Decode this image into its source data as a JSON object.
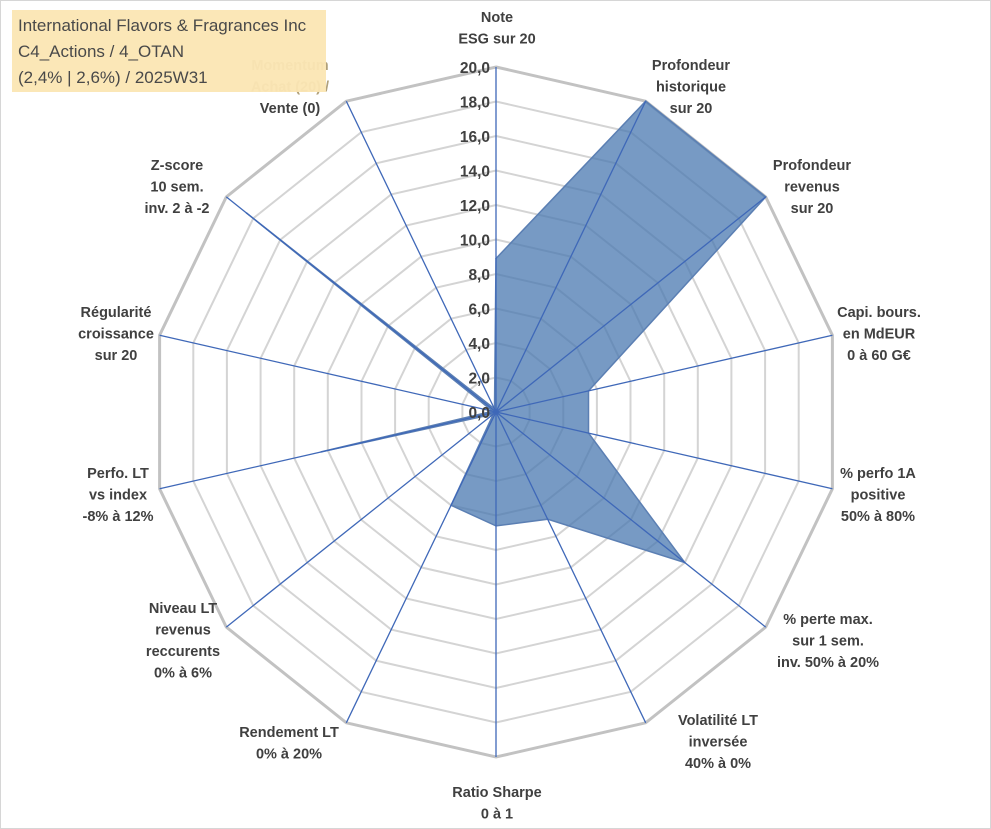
{
  "title": {
    "line1": "International Flavors & Fragrances Inc",
    "line2": "C4_Actions / 4_OTAN",
    "line3": "(2,4% | 2,6%) / 2025W31"
  },
  "chart_data": {
    "type": "radar",
    "r_range": [
      0,
      20
    ],
    "ticks": [
      "0,0",
      "2,0",
      "4,0",
      "6,0",
      "8,0",
      "10,0",
      "12,0",
      "14,0",
      "16,0",
      "18,0",
      "20,0"
    ],
    "gridlines": true,
    "axes": [
      {
        "label": [
          "Note",
          "ESG sur 20"
        ]
      },
      {
        "label": [
          "Profondeur",
          "historique",
          "sur 20"
        ]
      },
      {
        "label": [
          "Profondeur",
          "revenus",
          "sur 20"
        ]
      },
      {
        "label": [
          "Capi. bours.",
          "en MdEUR",
          "0 à 60 G€"
        ]
      },
      {
        "label": [
          "% perfo 1A",
          "positive",
          "50% à 80%"
        ]
      },
      {
        "label": [
          "% perte max.",
          "sur 1 sem.",
          "inv. 50% à 20%"
        ]
      },
      {
        "label": [
          "Volatilité LT",
          "inversée",
          "40% à 0%"
        ]
      },
      {
        "label": [
          "Ratio Sharpe",
          "0 à 1"
        ]
      },
      {
        "label": [
          "Rendement LT",
          "0% à 20%"
        ]
      },
      {
        "label": [
          "Niveau LT",
          "revenus",
          "reccurents",
          "0% à 6%"
        ]
      },
      {
        "label": [
          "Perfo. LT",
          "vs index",
          "-8% à 12%"
        ]
      },
      {
        "label": [
          "Régularité",
          "croissance",
          "sur 20"
        ]
      },
      {
        "label": [
          "Z-score",
          "10 sem.",
          "inv. 2 à -2"
        ]
      },
      {
        "label": [
          "Momentum",
          "Achat (20) /",
          "Vente (0)"
        ]
      }
    ],
    "series": [
      {
        "values": [
          8.9,
          20.0,
          20.0,
          5.5,
          5.5,
          14.0,
          6.9,
          6.6,
          6.0,
          0.2,
          10.4,
          0.2,
          18.5,
          0.2
        ]
      }
    ],
    "colors": {
      "fill": "#4a78b0",
      "stroke": "#5b7fb3",
      "grid": "#c0c0c0",
      "spoke": "#3f68b8"
    }
  }
}
